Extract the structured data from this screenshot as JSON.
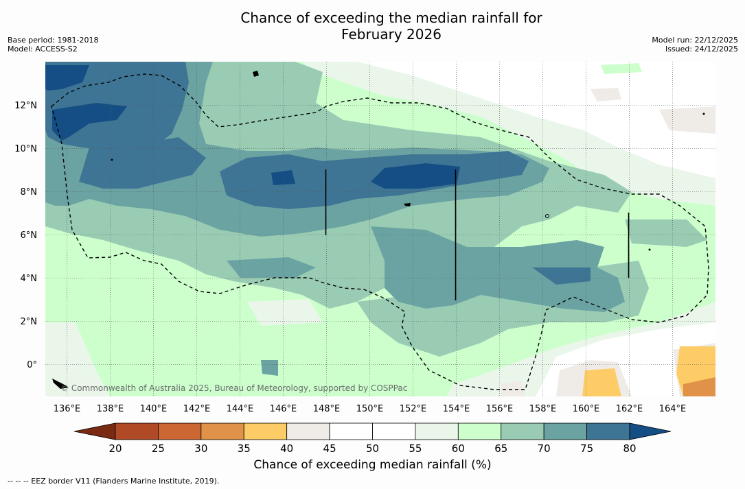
{
  "title_line1": "Chance of exceeding the median rainfall for",
  "title_line2": "February 2026",
  "base_period": "Base period: 1981-2018",
  "model": "Model: ACCESS-S2",
  "model_run": "Model run: 22/12/2025",
  "issued": "Issued: 24/12/2025",
  "copyright": "© Commonwealth of Australia 2025, Bureau of Meteorology, supported by COSPPac",
  "lat_labels": [
    "12°N",
    "10°N",
    "8°N",
    "6°N",
    "4°N",
    "2°N",
    "0°"
  ],
  "lon_labels": [
    "136°E",
    "138°E",
    "140°E",
    "142°E",
    "144°E",
    "146°E",
    "148°E",
    "150°E",
    "152°E",
    "154°E",
    "156°E",
    "158°E",
    "160°E",
    "162°E",
    "164°E"
  ],
  "colorbar": {
    "ticks": [
      "20",
      "25",
      "30",
      "35",
      "40",
      "45",
      "50",
      "55",
      "60",
      "65",
      "70",
      "75",
      "80"
    ],
    "colors": [
      "#7a2a12",
      "#b04a26",
      "#cc6633",
      "#e09348",
      "#fdcc66",
      "#efebe7",
      "#ffffff",
      "#ffffff",
      "#eaf6ea",
      "#ccffcc",
      "#99ccb3",
      "#6ba3a3",
      "#3f7594",
      "#144e84"
    ],
    "label": "Chance of exceeding median rainfall (%)"
  },
  "footer": "--  --  -- EEZ border V11 (Flanders Marine Institute, 2019)."
}
